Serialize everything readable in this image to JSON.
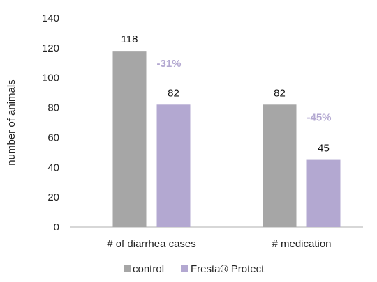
{
  "chart_data": {
    "type": "bar",
    "categories": [
      "# of diarrhea cases",
      "# medication"
    ],
    "series": [
      {
        "name": "control",
        "values": [
          118,
          82
        ],
        "color": "#a6a6a6"
      },
      {
        "name": "Fresta® Protect",
        "values": [
          82,
          45
        ],
        "color": "#b3a8d1"
      }
    ],
    "title": "",
    "xlabel": "",
    "ylabel": "number of animals",
    "ylim": [
      0,
      140
    ],
    "yticks": [
      0,
      20,
      40,
      60,
      80,
      100,
      120,
      140
    ],
    "grid": false,
    "legend_position": "bottom",
    "annotations": [
      {
        "category": "# of diarrhea cases",
        "text": "-31%",
        "color": "#b3a8d1"
      },
      {
        "category": "# medication",
        "text": "-45%",
        "color": "#b3a8d1"
      }
    ]
  }
}
